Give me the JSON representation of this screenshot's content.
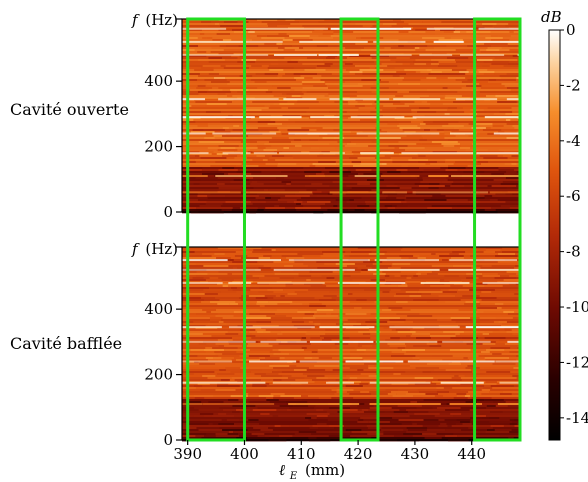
{
  "chart_data": {
    "type": "heatmap",
    "xlabel_symbol": "ℓ",
    "xlabel_subscript": "E",
    "xlabel_unit": "(mm)",
    "ylabel_symbol": "f",
    "ylabel_unit": "(Hz)",
    "x_ticks": [
      390,
      400,
      410,
      420,
      430,
      440
    ],
    "y_ticks": [
      0,
      200,
      400
    ],
    "xlim": [
      389,
      448.5
    ],
    "ylim": [
      0,
      590
    ],
    "colorbar": {
      "label": "dB",
      "ticks": [
        0,
        -2,
        -4,
        -6,
        -8,
        -10,
        -12,
        -14
      ],
      "tick_labels": [
        "0",
        "-2",
        "-4",
        "-6",
        "-8",
        "-10",
        "-12",
        "-14"
      ],
      "range": [
        -14.8,
        0
      ]
    },
    "highlight_color": "#22dd22",
    "highlight_regions_mm": [
      [
        390,
        400
      ],
      [
        417,
        423.5
      ],
      [
        440.5,
        448.5
      ]
    ],
    "panels": [
      {
        "label": "Cavité ouverte",
        "typical_level_db": -5,
        "low_freq_band": {
          "from_hz": 0,
          "to_hz": 140,
          "level_db": -9
        },
        "bright_lines_hz": [
          60,
          110,
          180,
          240,
          290,
          345,
          480,
          520,
          560
        ]
      },
      {
        "label": "Cavité bafflée",
        "typical_level_db": -5.5,
        "low_freq_band": {
          "from_hz": 0,
          "to_hz": 130,
          "level_db": -9.5
        },
        "bright_lines_hz": [
          110,
          175,
          240,
          300,
          345,
          480,
          520,
          550
        ]
      }
    ]
  }
}
